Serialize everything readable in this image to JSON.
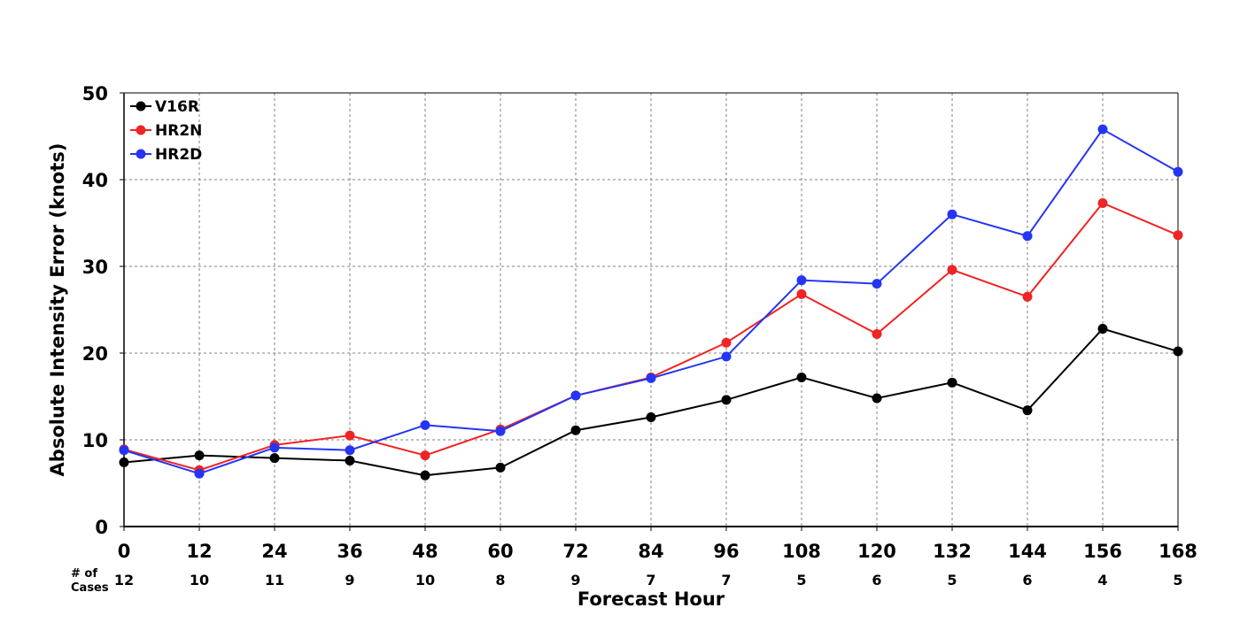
{
  "chart_data": {
    "type": "line",
    "title": "",
    "xlabel": "Forecast Hour",
    "ylabel": "Absolute Intensity Error (knots)",
    "x": [
      0,
      12,
      24,
      36,
      48,
      60,
      72,
      84,
      96,
      108,
      120,
      132,
      144,
      156,
      168
    ],
    "xlim": [
      0,
      168
    ],
    "ylim": [
      0,
      50
    ],
    "yticks": [
      0,
      10,
      20,
      30,
      40,
      50
    ],
    "grid": true,
    "legend_position": "top-left",
    "series": [
      {
        "name": "V16R",
        "color": "#000000",
        "values": [
          7.4,
          8.2,
          7.9,
          7.6,
          5.9,
          6.8,
          11.1,
          12.6,
          14.6,
          17.2,
          14.8,
          16.6,
          13.4,
          22.8,
          20.2
        ]
      },
      {
        "name": "HR2N",
        "color": "#ef2424",
        "values": [
          8.9,
          6.5,
          9.4,
          10.5,
          8.2,
          11.2,
          15.1,
          17.2,
          21.2,
          26.8,
          22.2,
          29.6,
          26.5,
          37.3,
          33.6
        ]
      },
      {
        "name": "HR2D",
        "color": "#2435f5",
        "values": [
          8.8,
          6.1,
          9.1,
          8.8,
          11.7,
          11.0,
          15.1,
          17.1,
          19.6,
          28.4,
          28.0,
          36.0,
          33.5,
          45.8,
          40.9
        ]
      }
    ],
    "cases_label_line1": "# of",
    "cases_label_line2": "Cases",
    "cases": [
      12,
      10,
      11,
      9,
      10,
      8,
      9,
      7,
      7,
      5,
      6,
      5,
      6,
      4,
      5
    ]
  }
}
